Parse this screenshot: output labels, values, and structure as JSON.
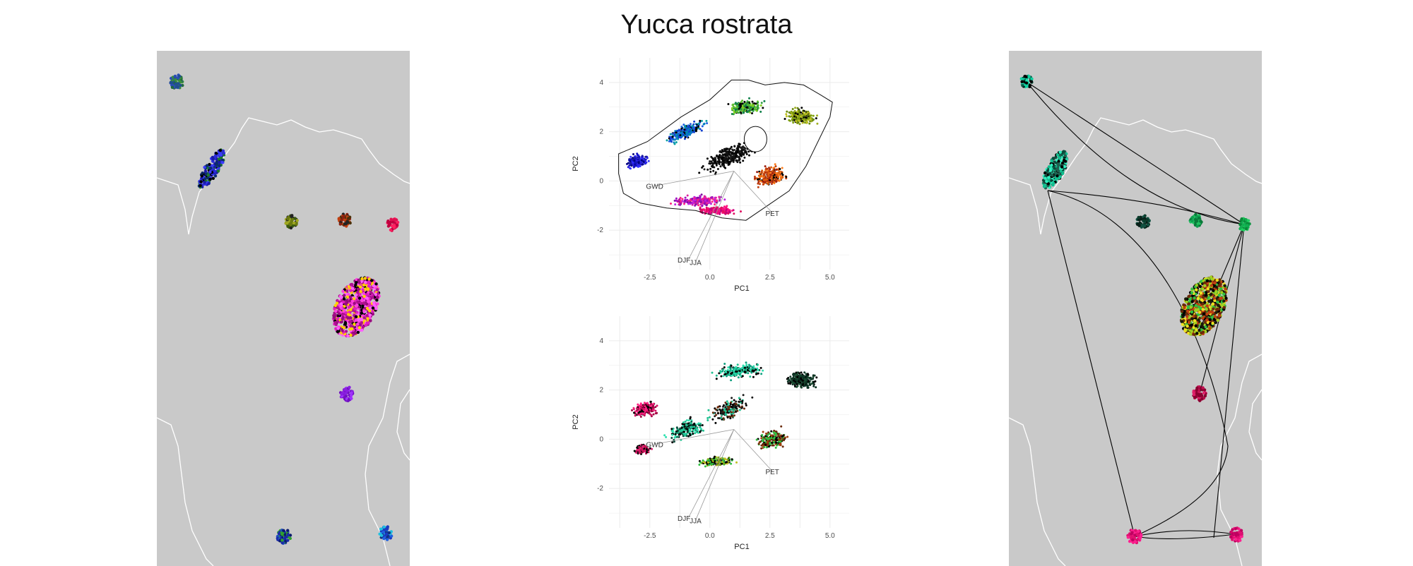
{
  "title": "Yucca rostrata",
  "chart_data": [
    {
      "type": "scatter",
      "panel": "pca-top",
      "xlabel": "PC1",
      "ylabel": "PC2",
      "xlim": [
        -4.2,
        5.8
      ],
      "ylim": [
        -3.6,
        5.0
      ],
      "xticks": [
        "-2.5",
        "0.0",
        "2.5",
        "5.0"
      ],
      "yticks": [
        "4",
        "2",
        "0",
        "-2"
      ],
      "grid": true,
      "variables": [
        "GWD",
        "PET",
        "DJF",
        "JJA"
      ],
      "color_scheme": "hue by position (blue, purple, magenta, red, orange, green)",
      "approx_point_cloud": {
        "x_range": [
          -3.8,
          5.2
        ],
        "y_range": [
          -1.8,
          4.6
        ]
      }
    },
    {
      "type": "scatter",
      "panel": "pca-bottom",
      "xlabel": "PC1",
      "ylabel": "PC2",
      "xlim": [
        -4.2,
        5.8
      ],
      "ylim": [
        -3.6,
        5.0
      ],
      "xticks": [
        "-2.5",
        "0.0",
        "2.5",
        "5.0"
      ],
      "yticks": [
        "4",
        "2",
        "0",
        "-2"
      ],
      "grid": true,
      "variables": [
        "GWD",
        "PET",
        "DJF",
        "JJA"
      ],
      "color_scheme": "crimson, teal, dark green, olive, bright green",
      "approx_point_cloud": {
        "x_range": [
          -3.8,
          5.2
        ],
        "y_range": [
          -1.8,
          4.6
        ]
      }
    }
  ],
  "colors": {
    "map_bg": "#c9c9c9",
    "border": "#ffffff",
    "grid": "#ebebeb"
  }
}
